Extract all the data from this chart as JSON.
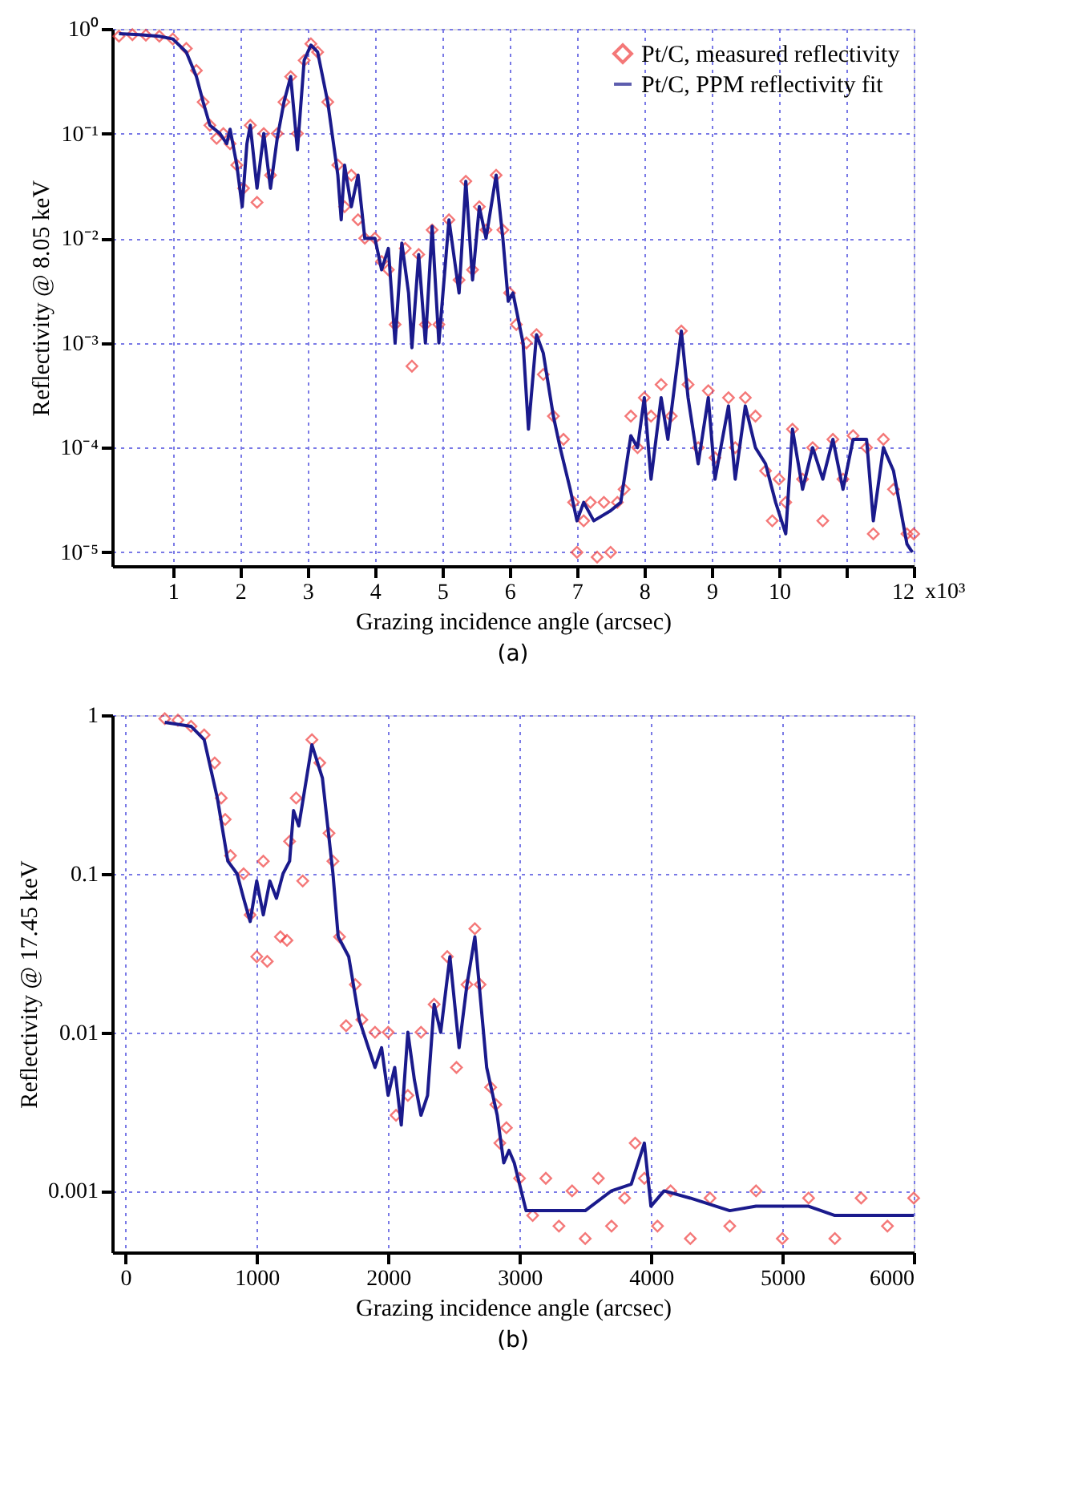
{
  "chart_data": [
    {
      "type": "scatter",
      "xlabel": "Grazing incidence angle (arcsec)",
      "ylabel": "Reflectivity @ 8.05 keV",
      "annotations": [
        "(a)",
        "x10³"
      ],
      "xlim": [
        0.1,
        12
      ],
      "ylim": [
        7.4e-06,
        1
      ],
      "xticks": [
        1,
        2,
        3,
        4,
        5,
        6,
        7,
        8,
        9,
        10,
        {
          "value": 11,
          "label": null
        },
        12
      ],
      "yticks": [
        {
          "value": 1e-05,
          "label": "10⁻⁵"
        },
        {
          "value": 0.0001,
          "label": "10⁻⁴"
        },
        {
          "value": 0.001,
          "label": "10⁻³"
        },
        {
          "value": 0.01,
          "label": "10⁻²"
        },
        {
          "value": 0.1,
          "label": "10⁻¹"
        },
        {
          "value": 1,
          "label": "10⁰"
        }
      ],
      "log": "y",
      "grid": true,
      "legend": "top right",
      "series": [
        {
          "name": "Pt/C, measured reflectivity",
          "marker": "diamond",
          "color": "#f04040",
          "x": [
            0.2,
            0.4,
            0.6,
            0.8,
            1.0,
            1.2,
            1.35,
            1.45,
            1.55,
            1.65,
            1.75,
            1.85,
            1.95,
            2.05,
            2.15,
            2.25,
            2.35,
            2.45,
            2.55,
            2.65,
            2.75,
            2.85,
            2.95,
            3.05,
            3.15,
            3.3,
            3.45,
            3.55,
            3.65,
            3.75,
            3.85,
            4.0,
            4.1,
            4.2,
            4.3,
            4.45,
            4.55,
            4.65,
            4.75,
            4.85,
            4.95,
            5.1,
            5.25,
            5.35,
            5.45,
            5.55,
            5.65,
            5.8,
            5.9,
            6.0,
            6.1,
            6.25,
            6.4,
            6.5,
            6.65,
            6.8,
            6.95,
            7.0,
            7.1,
            7.2,
            7.3,
            7.4,
            7.5,
            7.6,
            7.7,
            7.8,
            7.9,
            8.0,
            8.1,
            8.25,
            8.4,
            8.55,
            8.65,
            8.8,
            8.95,
            9.05,
            9.25,
            9.35,
            9.5,
            9.65,
            9.8,
            9.9,
            10.0,
            10.1,
            10.2,
            10.35,
            10.5,
            10.65,
            10.8,
            10.95,
            11.1,
            11.3,
            11.4,
            11.55,
            11.7,
            11.9,
            12.0
          ],
          "values": [
            0.85,
            0.88,
            0.87,
            0.85,
            0.8,
            0.65,
            0.4,
            0.2,
            0.12,
            0.09,
            0.1,
            0.08,
            0.05,
            0.03,
            0.12,
            0.022,
            0.1,
            0.04,
            0.1,
            0.2,
            0.35,
            0.1,
            0.5,
            0.72,
            0.6,
            0.2,
            0.05,
            0.02,
            0.04,
            0.015,
            0.01,
            0.01,
            0.006,
            0.005,
            0.0015,
            0.008,
            0.0006,
            0.007,
            0.0015,
            0.012,
            0.0015,
            0.015,
            0.004,
            0.035,
            0.005,
            0.02,
            0.012,
            0.04,
            0.012,
            0.003,
            0.0015,
            0.001,
            0.0012,
            0.0005,
            0.0002,
            0.00012,
            3e-05,
            1e-05,
            2e-05,
            3e-05,
            9e-06,
            3e-05,
            1e-05,
            3e-05,
            4e-05,
            0.0002,
            0.0001,
            0.0003,
            0.0002,
            0.0004,
            0.0002,
            0.0013,
            0.0004,
            0.0001,
            0.00035,
            8e-05,
            0.0003,
            0.0001,
            0.0003,
            0.0002,
            6e-05,
            2e-05,
            5e-05,
            3e-05,
            0.00015,
            5e-05,
            0.0001,
            2e-05,
            0.00012,
            5e-05,
            0.00013,
            0.0001,
            1.5e-05,
            0.00012,
            4e-05,
            1.5e-05,
            1.5e-05
          ]
        },
        {
          "name": "Pt/C, PPM reflectivity fit",
          "type": "line",
          "marker": "none",
          "color": "#1a1a8c",
          "x": [
            0.2,
            0.5,
            0.8,
            1.0,
            1.2,
            1.35,
            1.45,
            1.55,
            1.7,
            1.8,
            1.85,
            1.95,
            2.03,
            2.1,
            2.15,
            2.25,
            2.35,
            2.45,
            2.55,
            2.65,
            2.75,
            2.85,
            2.95,
            3.05,
            3.15,
            3.3,
            3.45,
            3.5,
            3.55,
            3.65,
            3.75,
            3.85,
            4.0,
            4.1,
            4.2,
            4.3,
            4.4,
            4.5,
            4.55,
            4.65,
            4.75,
            4.85,
            4.95,
            5.1,
            5.25,
            5.35,
            5.45,
            5.55,
            5.65,
            5.8,
            5.9,
            5.98,
            6.05,
            6.2,
            6.28,
            6.4,
            6.5,
            6.65,
            6.75,
            6.9,
            7.0,
            7.1,
            7.25,
            7.5,
            7.65,
            7.8,
            7.9,
            8.0,
            8.1,
            8.25,
            8.35,
            8.55,
            8.65,
            8.8,
            8.95,
            9.05,
            9.25,
            9.35,
            9.5,
            9.65,
            9.8,
            9.95,
            10.1,
            10.2,
            10.35,
            10.5,
            10.65,
            10.8,
            10.95,
            11.1,
            11.3,
            11.4,
            11.55,
            11.7,
            11.9,
            11.98
          ],
          "values": [
            0.9,
            0.88,
            0.85,
            0.8,
            0.6,
            0.35,
            0.2,
            0.12,
            0.1,
            0.08,
            0.11,
            0.05,
            0.02,
            0.08,
            0.12,
            0.03,
            0.1,
            0.03,
            0.09,
            0.2,
            0.35,
            0.07,
            0.5,
            0.7,
            0.6,
            0.2,
            0.04,
            0.015,
            0.05,
            0.02,
            0.04,
            0.01,
            0.01,
            0.005,
            0.008,
            0.001,
            0.009,
            0.003,
            0.0009,
            0.007,
            0.001,
            0.013,
            0.001,
            0.015,
            0.003,
            0.035,
            0.004,
            0.02,
            0.01,
            0.04,
            0.01,
            0.0025,
            0.003,
            0.001,
            0.00015,
            0.0012,
            0.0008,
            0.0002,
            0.0001,
            4e-05,
            2e-05,
            3e-05,
            2e-05,
            2.5e-05,
            3e-05,
            0.00013,
            0.0001,
            0.0003,
            5e-05,
            0.0003,
            0.00012,
            0.0013,
            0.0003,
            7e-05,
            0.0003,
            5e-05,
            0.00025,
            5e-05,
            0.00025,
            0.0001,
            7e-05,
            3e-05,
            1.5e-05,
            0.00015,
            4e-05,
            0.0001,
            5e-05,
            0.00012,
            4e-05,
            0.00012,
            0.00012,
            2e-05,
            0.0001,
            6e-05,
            1.2e-05,
            1e-05
          ]
        }
      ]
    },
    {
      "type": "scatter",
      "xlabel": "Grazing incidence angle (arcsec)",
      "ylabel": "Reflectivity @ 17.45 keV",
      "annotations": [
        "(b)"
      ],
      "xlim": [
        -100,
        6000
      ],
      "ylim": [
        0.00041,
        1
      ],
      "xticks": [
        0,
        1000,
        2000,
        3000,
        4000,
        5000,
        6000
      ],
      "yticks": [
        0.001,
        0.01,
        0.1,
        1
      ],
      "log": "y",
      "grid": true,
      "legend": "top right",
      "series": [
        {
          "name": "Pt/C, measured reflectivity",
          "marker": "diamond",
          "color": "#f04040",
          "x": [
            300,
            400,
            500,
            600,
            680,
            730,
            760,
            800,
            900,
            950,
            1000,
            1050,
            1080,
            1180,
            1230,
            1250,
            1300,
            1350,
            1420,
            1480,
            1550,
            1580,
            1630,
            1680,
            1750,
            1800,
            1900,
            2000,
            2060,
            2150,
            2250,
            2350,
            2450,
            2520,
            2600,
            2660,
            2700,
            2780,
            2820,
            2850,
            2900,
            3000,
            3100,
            3200,
            3300,
            3400,
            3500,
            3600,
            3700,
            3800,
            3880,
            3950,
            4050,
            4150,
            4300,
            4450,
            4600,
            4800,
            5000,
            5200,
            5400,
            5600,
            5800,
            6000
          ],
          "values": [
            0.95,
            0.93,
            0.85,
            0.75,
            0.5,
            0.3,
            0.22,
            0.13,
            0.1,
            0.055,
            0.03,
            0.12,
            0.028,
            0.04,
            0.038,
            0.16,
            0.3,
            0.09,
            0.7,
            0.5,
            0.18,
            0.12,
            0.04,
            0.011,
            0.02,
            0.012,
            0.01,
            0.01,
            0.003,
            0.004,
            0.01,
            0.015,
            0.03,
            0.006,
            0.02,
            0.045,
            0.02,
            0.0045,
            0.0035,
            0.002,
            0.0025,
            0.0012,
            0.0007,
            0.0012,
            0.0006,
            0.001,
            0.0005,
            0.0012,
            0.0006,
            0.0009,
            0.002,
            0.0012,
            0.0006,
            0.001,
            0.0005,
            0.0009,
            0.0006,
            0.001,
            0.0005,
            0.0009,
            0.0005,
            0.0009,
            0.0006,
            0.0009
          ]
        },
        {
          "name": "Pt/C, PPM reflectivity fit",
          "type": "line",
          "marker": "none",
          "color": "#1a1a8c",
          "x": [
            300,
            500,
            600,
            700,
            780,
            850,
            900,
            950,
            1000,
            1050,
            1100,
            1150,
            1200,
            1250,
            1280,
            1320,
            1420,
            1500,
            1580,
            1620,
            1700,
            1780,
            1850,
            1900,
            1950,
            2000,
            2050,
            2100,
            2150,
            2200,
            2250,
            2300,
            2350,
            2400,
            2470,
            2540,
            2600,
            2660,
            2750,
            2830,
            2880,
            2920,
            2960,
            3050,
            3500,
            3700,
            3850,
            3950,
            4000,
            4100,
            4300,
            4600,
            4800,
            5200,
            5400,
            6000
          ],
          "values": [
            0.9,
            0.85,
            0.7,
            0.3,
            0.12,
            0.1,
            0.07,
            0.05,
            0.09,
            0.055,
            0.09,
            0.07,
            0.1,
            0.12,
            0.25,
            0.2,
            0.65,
            0.4,
            0.1,
            0.04,
            0.03,
            0.012,
            0.008,
            0.006,
            0.008,
            0.004,
            0.006,
            0.0026,
            0.01,
            0.005,
            0.003,
            0.004,
            0.015,
            0.01,
            0.03,
            0.008,
            0.02,
            0.04,
            0.006,
            0.003,
            0.0015,
            0.0018,
            0.0015,
            0.00075,
            0.00075,
            0.001,
            0.0011,
            0.002,
            0.0008,
            0.001,
            0.0009,
            0.00075,
            0.0008,
            0.0008,
            0.0007,
            0.0007
          ]
        }
      ]
    }
  ]
}
